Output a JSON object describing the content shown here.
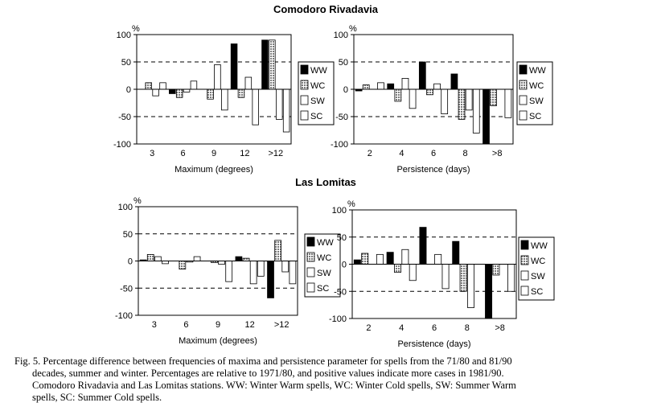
{
  "figure": {
    "group_titles": [
      "Comodoro Rivadavia",
      "Las Lomitas"
    ],
    "caption_lines": [
      "Fig. 5. Percentage difference between frequencies of maxima and persistence parameter for spells from the 71/80 and 81/90",
      "decades, summer and winter. Percentages are relative to 1971/80, and positive values indicate more cases in 1981/90.",
      "Comodoro Rivadavia and Las Lomitas stations. WW: Winter Warm spells, WC: Winter Cold spells, SW: Summer Warm",
      "spells, SC: Summer Cold spells."
    ],
    "colors": {
      "WW": "#000000",
      "WC": "#7a7a7a",
      "SW": "#ffffff",
      "SC": "#ffffff",
      "frame": "#000000"
    }
  },
  "chart_data": [
    {
      "type": "bar",
      "station": "Comodoro Rivadavia",
      "title": "",
      "percent_label": "%",
      "xlabel": "Maximum (degrees)",
      "ylabel": "%",
      "ylim": [
        -100,
        100
      ],
      "yticks": [
        100,
        50,
        0,
        -50,
        -100
      ],
      "dashed_lines": [
        50,
        -50
      ],
      "categories": [
        "3",
        "6",
        "9",
        "12",
        ">12"
      ],
      "legend": [
        "WW",
        "WC",
        "SW",
        "SC"
      ],
      "series": [
        {
          "name": "WW",
          "values": [
            0,
            -8,
            0,
            83,
            90
          ]
        },
        {
          "name": "WC",
          "values": [
            12,
            -15,
            -18,
            -15,
            90
          ]
        },
        {
          "name": "SW",
          "values": [
            -12,
            -5,
            45,
            22,
            -55
          ]
        },
        {
          "name": "SC",
          "values": [
            12,
            15,
            -38,
            -65,
            -78
          ]
        }
      ]
    },
    {
      "type": "bar",
      "station": "Comodoro Rivadavia",
      "title": "",
      "percent_label": "%",
      "xlabel": "Persistence (days)",
      "ylabel": "%",
      "ylim": [
        -100,
        100
      ],
      "yticks": [
        100,
        50,
        0,
        -50,
        -100
      ],
      "dashed_lines": [
        50,
        -50
      ],
      "categories": [
        "2",
        "4",
        "6",
        "8",
        ">8"
      ],
      "legend": [
        "WW",
        "WC",
        "SW",
        "SC"
      ],
      "series": [
        {
          "name": "WW",
          "values": [
            -3,
            10,
            50,
            28,
            -100
          ]
        },
        {
          "name": "WC",
          "values": [
            8,
            -22,
            -10,
            -55,
            -30
          ]
        },
        {
          "name": "SW",
          "values": [
            0,
            20,
            10,
            -38,
            0
          ]
        },
        {
          "name": "SC",
          "values": [
            12,
            -35,
            -45,
            -80,
            -52
          ]
        }
      ]
    },
    {
      "type": "bar",
      "station": "Las Lomitas",
      "title": "",
      "percent_label": "%",
      "xlabel": "Maximum (degrees)",
      "ylabel": "%",
      "ylim": [
        -100,
        100
      ],
      "yticks": [
        100,
        50,
        0,
        -50,
        -100
      ],
      "dashed_lines": [
        50,
        -50
      ],
      "categories": [
        "3",
        "6",
        "9",
        "12",
        ">12"
      ],
      "legend": [
        "WW",
        "WC",
        "SW",
        "SC"
      ],
      "series": [
        {
          "name": "WW",
          "values": [
            2,
            0,
            0,
            8,
            -68
          ]
        },
        {
          "name": "WC",
          "values": [
            12,
            -15,
            -3,
            5,
            38
          ]
        },
        {
          "name": "SW",
          "values": [
            8,
            -2,
            -6,
            -42,
            -20
          ]
        },
        {
          "name": "SC",
          "values": [
            -5,
            8,
            -38,
            -28,
            -42
          ]
        }
      ]
    },
    {
      "type": "bar",
      "station": "Las Lomitas",
      "title": "",
      "percent_label": "%",
      "xlabel": "Persistence (days)",
      "ylabel": "%",
      "ylim": [
        -100,
        100
      ],
      "yticks": [
        100,
        50,
        0,
        -50,
        -100
      ],
      "dashed_lines": [
        50,
        -50
      ],
      "categories": [
        "2",
        "4",
        "6",
        "8",
        ">8"
      ],
      "legend": [
        "WW",
        "WC",
        "SW",
        "SC"
      ],
      "series": [
        {
          "name": "WW",
          "values": [
            8,
            22,
            68,
            42,
            -100
          ]
        },
        {
          "name": "WC",
          "values": [
            20,
            -15,
            0,
            -50,
            -20
          ]
        },
        {
          "name": "SW",
          "values": [
            0,
            27,
            18,
            -80,
            0
          ]
        },
        {
          "name": "SC",
          "values": [
            18,
            -30,
            -45,
            0,
            -50
          ]
        }
      ]
    }
  ]
}
